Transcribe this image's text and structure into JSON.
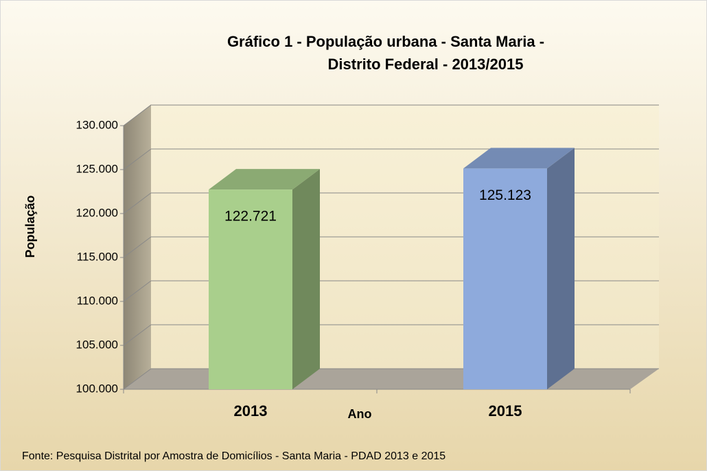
{
  "chart_data": {
    "type": "bar3d",
    "title": [
      "Gráfico 1 - População urbana - Santa Maria -",
      "Distrito Federal - 2013/2015"
    ],
    "x_label": "Ano",
    "y_label": "População",
    "categories": [
      "2013",
      "2015"
    ],
    "values": [
      122721,
      125123
    ],
    "value_labels": [
      "122.721",
      "125.123"
    ],
    "colors": [
      "#a9cf8c",
      "#8eaadc"
    ],
    "ylim": [
      100000,
      130000
    ],
    "yticks": [
      {
        "value": 100000,
        "label": "100.000"
      },
      {
        "value": 105000,
        "label": "105.000"
      },
      {
        "value": 110000,
        "label": "110.000"
      },
      {
        "value": 115000,
        "label": "115.000"
      },
      {
        "value": 120000,
        "label": "120.000"
      },
      {
        "value": 125000,
        "label": "125.000"
      },
      {
        "value": 130000,
        "label": "130.000"
      }
    ],
    "grid": true,
    "source": "Fonte: Pesquisa Distrital por Amostra de Domicílios  - Santa Maria - PDAD 2013 e 2015"
  }
}
